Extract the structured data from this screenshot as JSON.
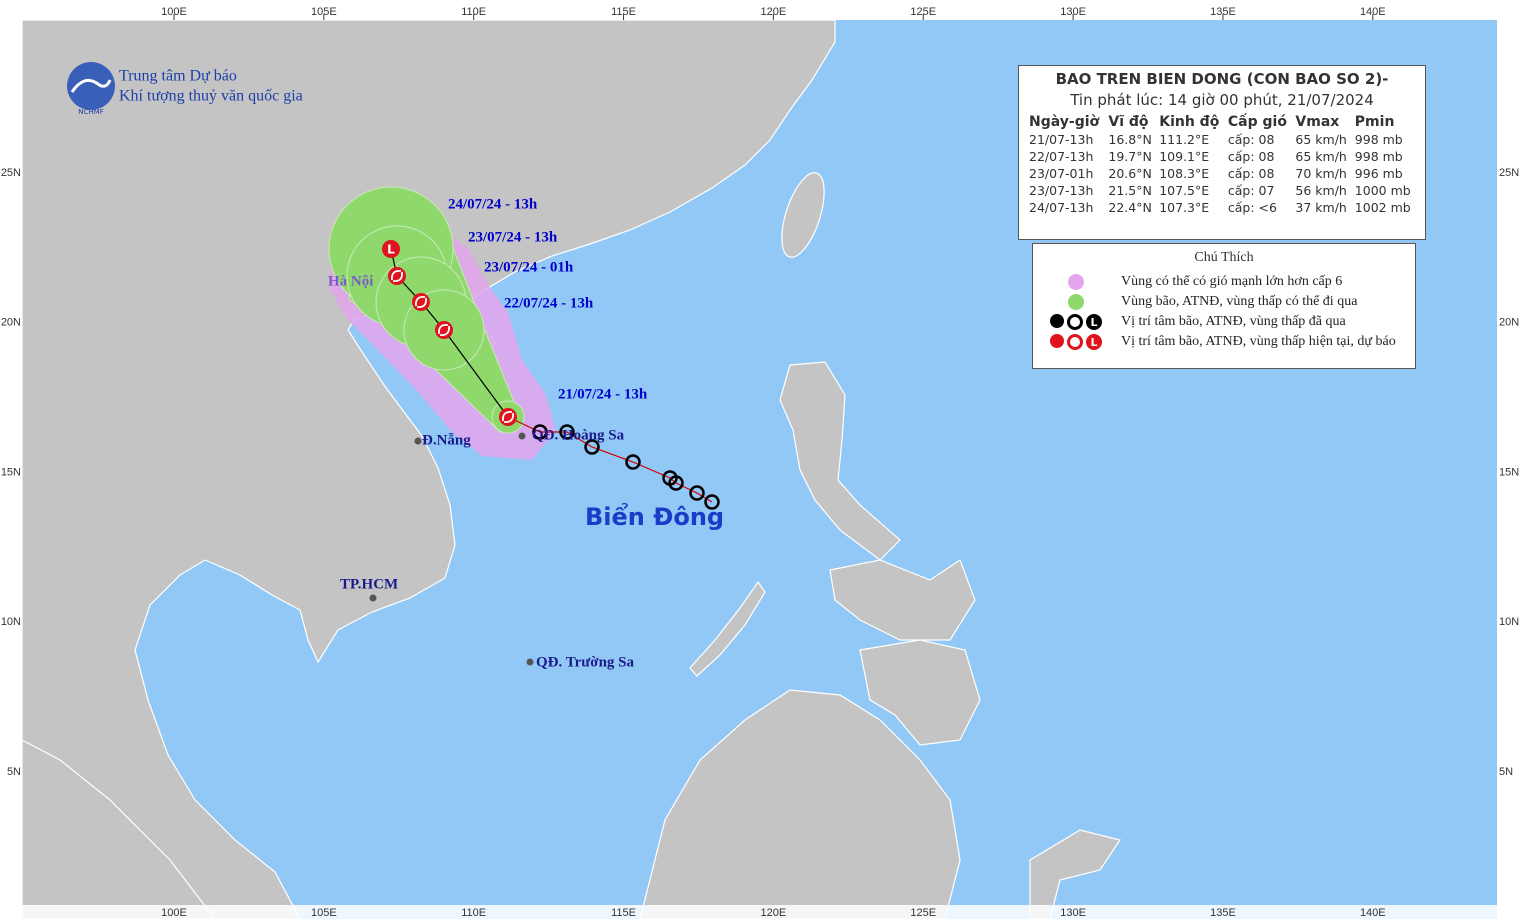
{
  "map": {
    "lon_labels": [
      "100E",
      "105E",
      "110E",
      "115E",
      "120E",
      "125E",
      "130E",
      "135E",
      "140E"
    ],
    "lat_labels": [
      "25N",
      "20N",
      "15N",
      "10N",
      "5N"
    ],
    "org": [
      "Trung tâm Dự báo",
      "Khí tượng thuỷ văn quốc gia"
    ],
    "logo": "NCHMF",
    "low_symbol": "L",
    "track_labels": [
      "24/07/24 - 13h",
      "23/07/24 - 13h",
      "23/07/24 - 01h",
      "22/07/24 - 13h",
      "21/07/24 - 13h"
    ],
    "places": [
      "Hà Nội",
      "Đ.Nẵng",
      "QĐ. Hoàng Sa",
      "TP.HCM",
      "QĐ. Trường Sa"
    ],
    "sea_label": "Biển Đông"
  },
  "bulletin": {
    "title": "BAO TREN BIEN DONG (CON BAO SO 2)-",
    "subtitle": "Tin phát lúc: 14 giờ 00 phút, 21/07/2024",
    "columns": [
      "Ngày-giờ",
      "Vĩ độ",
      "Kinh độ",
      "Cấp gió",
      "Vmax",
      "Pmin"
    ],
    "rows": [
      [
        "21/07-13h",
        "16.8°N",
        "111.2°E",
        "cấp: 08",
        "65 km/h",
        "998 mb"
      ],
      [
        "22/07-13h",
        "19.7°N",
        "109.1°E",
        "cấp: 08",
        "65 km/h",
        "998 mb"
      ],
      [
        "23/07-01h",
        "20.6°N",
        "108.3°E",
        "cấp: 08",
        "70 km/h",
        "996 mb"
      ],
      [
        "23/07-13h",
        "21.5°N",
        "107.5°E",
        "cấp: 07",
        "56 km/h",
        "1000 mb"
      ],
      [
        "24/07-13h",
        "22.4°N",
        "107.3°E",
        "cấp: <6",
        "37 km/h",
        "1002 mb"
      ]
    ]
  },
  "legend": {
    "title": "Chú Thích",
    "items": [
      "Vùng có thể có gió mạnh lớn hơn cấp 6",
      "Vùng bão, ATNĐ, vùng thấp có thể đi qua",
      "Vị trí tâm bão, ATNĐ, vùng thấp đã qua",
      "Vị trí tâm bão, ATNĐ, vùng thấp hiện tại, dự báo"
    ]
  }
}
